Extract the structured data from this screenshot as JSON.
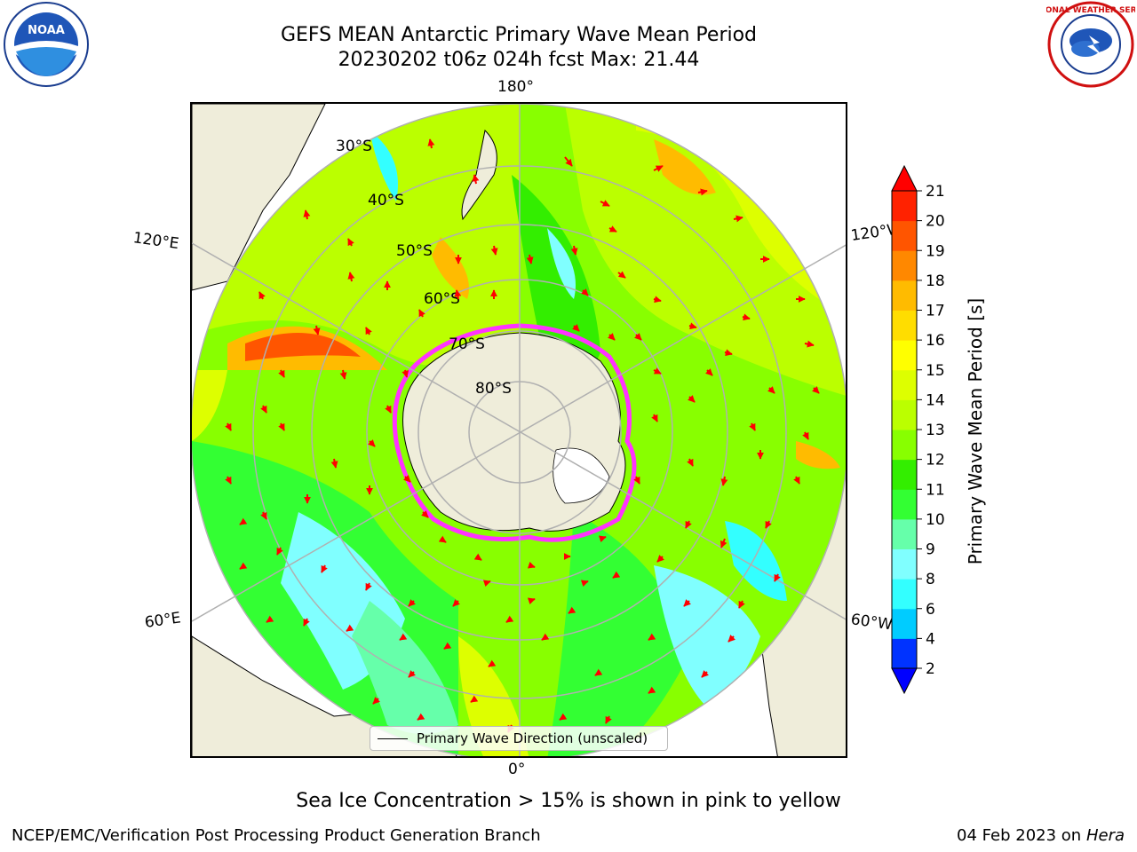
{
  "title": {
    "line1": "GEFS MEAN Antarctic Primary Wave Mean Period",
    "line2": "20230202 t06z 024h fcst   Max: 21.44"
  },
  "map": {
    "edge_labels": {
      "top": "180°",
      "bottom": "0°",
      "left_top": "120°E",
      "right_top": "120°W",
      "left_bottom": "60°E",
      "right_bottom": "60°W"
    },
    "latitude_labels": [
      "30°S",
      "40°S",
      "50°S",
      "60°S",
      "70°S",
      "80°S"
    ],
    "legend": "Primary Wave Direction (unscaled)",
    "colors": {
      "land": "#efedda",
      "ice_edge": "#ff33ff",
      "grid": "#b0b0b0",
      "arrow": "#ff0000"
    }
  },
  "colorbar": {
    "label": "Primary Wave Mean Period [s]",
    "ticks": [
      "2",
      "4",
      "6",
      "8",
      "9",
      "10",
      "11",
      "12",
      "13",
      "14",
      "15",
      "16",
      "17",
      "18",
      "19",
      "20",
      "21"
    ],
    "colors": [
      "#0033ff",
      "#00ccff",
      "#33ffff",
      "#80ffff",
      "#66ffaa",
      "#33ff33",
      "#33ee00",
      "#88ff00",
      "#bbff00",
      "#ddff00",
      "#ffff00",
      "#ffdd00",
      "#ffbb00",
      "#ff8800",
      "#ff5500",
      "#ff2200"
    ],
    "under_color": "#0000ff",
    "over_color": "#ff0000"
  },
  "ice_note": "Sea Ice Concentration > 15% is shown in pink to yellow",
  "footer": {
    "left": "NCEP/EMC/Verification Post Processing Product Generation Branch",
    "date": "04 Feb 2023 on",
    "host": "Hera"
  },
  "logos": {
    "left": "NOAA",
    "right": "NATIONAL WEATHER SERVICE"
  }
}
